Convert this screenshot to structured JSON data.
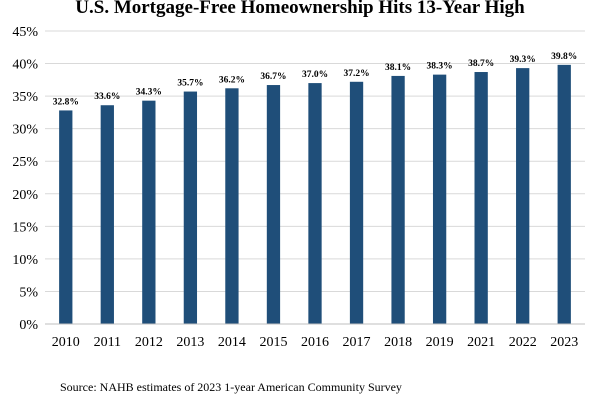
{
  "chart_data": {
    "type": "bar",
    "title": "U.S. Mortgage-Free Homeownership Hits 13-Year High",
    "categories": [
      "2010",
      "2011",
      "2012",
      "2013",
      "2014",
      "2015",
      "2016",
      "2017",
      "2018",
      "2019",
      "2021",
      "2022",
      "2023"
    ],
    "values": [
      32.8,
      33.6,
      34.3,
      35.7,
      36.2,
      36.7,
      37.0,
      37.2,
      38.1,
      38.3,
      38.7,
      39.3,
      39.8
    ],
    "data_labels": [
      "32.8%",
      "33.6%",
      "34.3%",
      "35.7%",
      "36.2%",
      "36.7%",
      "37.0%",
      "37.2%",
      "38.1%",
      "38.3%",
      "38.7%",
      "39.3%",
      "39.8%"
    ],
    "y_ticks": [
      "0%",
      "5%",
      "10%",
      "15%",
      "20%",
      "25%",
      "30%",
      "35%",
      "40%",
      "45%"
    ],
    "ylim": [
      0,
      45
    ],
    "y_step": 5,
    "xlabel": "",
    "ylabel": "",
    "grid": true,
    "bar_color": "#1f4e79",
    "source": "Source: NAHB estimates of 2023 1-year American Community Survey"
  }
}
